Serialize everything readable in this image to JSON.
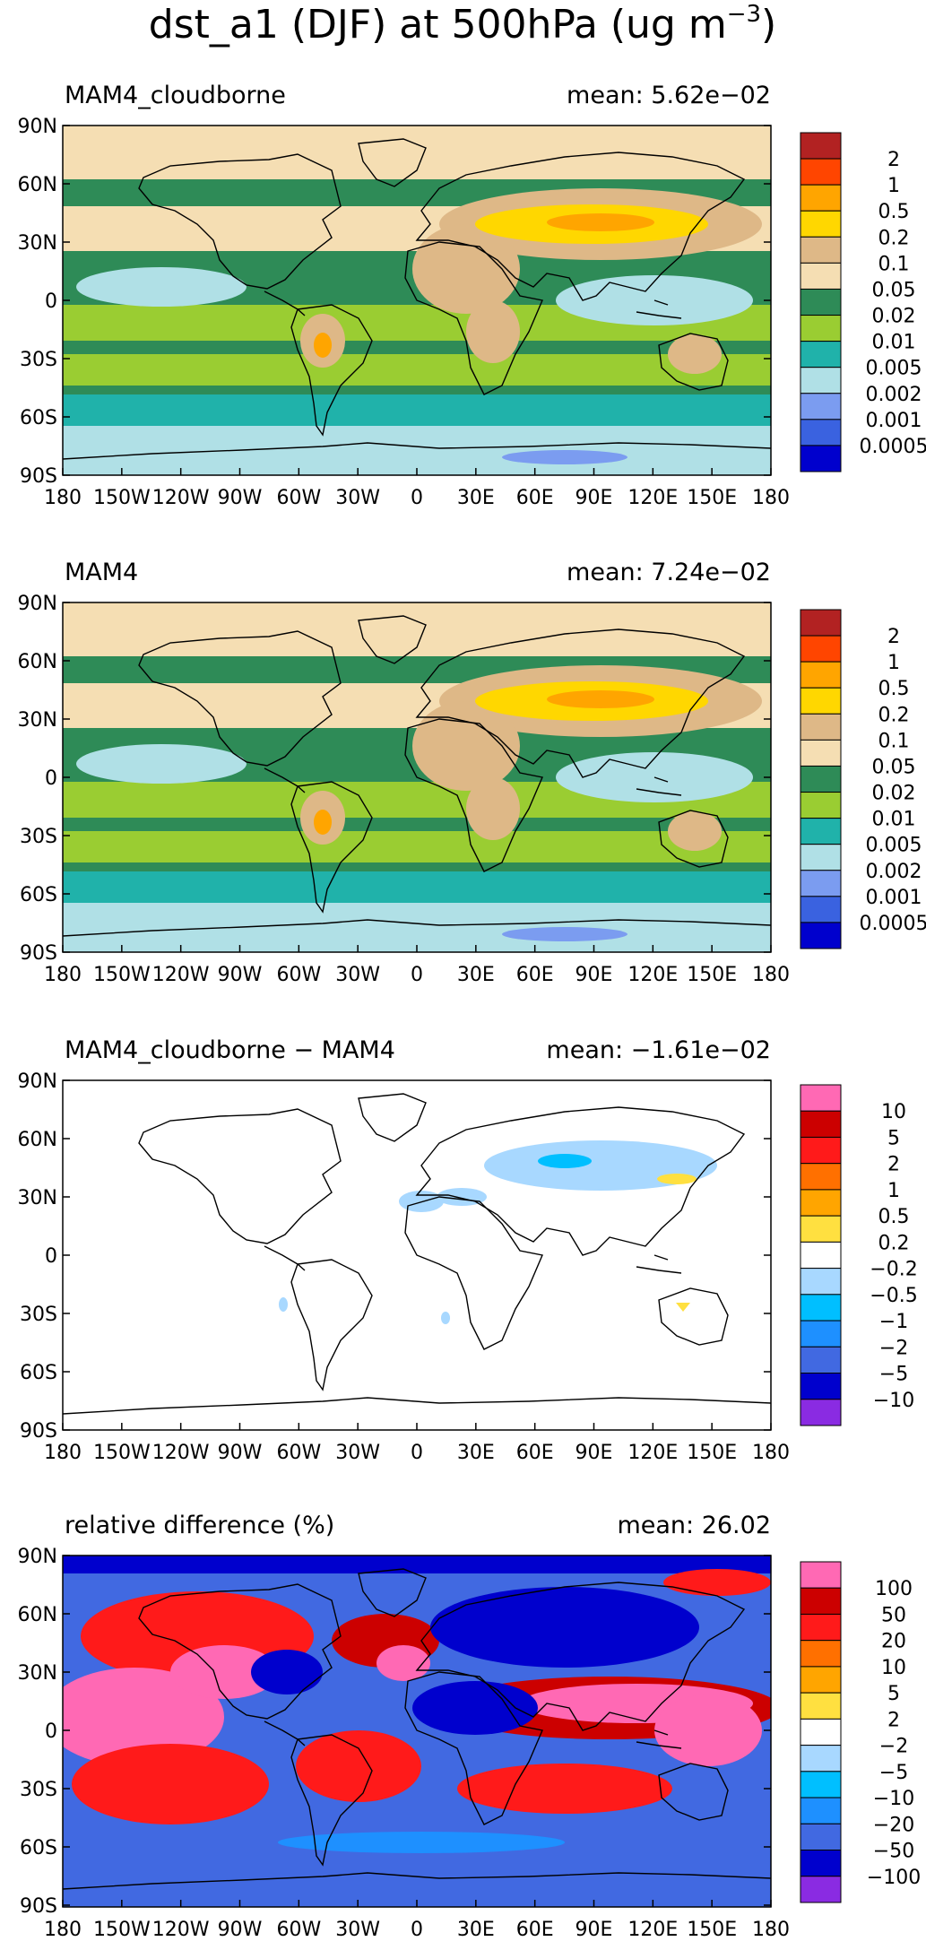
{
  "title": "dst_a1 (DJF) at 500hPa (ug m",
  "title_sup": "−3",
  "title_close": ")",
  "lat_labels": [
    "90N",
    "60N",
    "30N",
    "0",
    "30S",
    "60S",
    "90S"
  ],
  "lon_labels": [
    "180",
    "150W",
    "120W",
    "90W",
    "60W",
    "30W",
    "0",
    "30E",
    "60E",
    "90E",
    "120E",
    "150E",
    "180"
  ],
  "panels": [
    {
      "name": "MAM4_cloudborne",
      "mean": "mean: 5.62e−02",
      "colors": [
        "#b22222",
        "#ff4500",
        "#ffa500",
        "#ffd700",
        "#deb887",
        "#f5deb3",
        "#2e8b57",
        "#9acd32",
        "#20b2aa",
        "#b0e0e6",
        "#7b9cf0",
        "#3a62e0",
        "#0000cd"
      ],
      "levels": [
        "2",
        "1",
        "0.5",
        "0.2",
        "0.1",
        "0.05",
        "0.02",
        "0.01",
        "0.005",
        "0.002",
        "0.001",
        "0.0005"
      ]
    },
    {
      "name": "MAM4",
      "mean": "mean: 7.24e−02",
      "colors": [
        "#b22222",
        "#ff4500",
        "#ffa500",
        "#ffd700",
        "#deb887",
        "#f5deb3",
        "#2e8b57",
        "#9acd32",
        "#20b2aa",
        "#b0e0e6",
        "#7b9cf0",
        "#3a62e0",
        "#0000cd"
      ],
      "levels": [
        "2",
        "1",
        "0.5",
        "0.2",
        "0.1",
        "0.05",
        "0.02",
        "0.01",
        "0.005",
        "0.002",
        "0.001",
        "0.0005"
      ]
    },
    {
      "name": "MAM4_cloudborne − MAM4",
      "mean": "mean: −1.61e−02",
      "colors": [
        "#ff69b4",
        "#cc0000",
        "#ff1a1a",
        "#ff7000",
        "#ffa500",
        "#ffe040",
        "#ffffff",
        "#a8d8ff",
        "#00bfff",
        "#1e90ff",
        "#4169e1",
        "#0000cd",
        "#8a2be2"
      ],
      "levels": [
        "10",
        "5",
        "2",
        "1",
        "0.5",
        "0.2",
        "−0.2",
        "−0.5",
        "−1",
        "−2",
        "−5",
        "−10"
      ]
    },
    {
      "name": "relative difference (%)",
      "mean": "mean: 26.02",
      "colors": [
        "#ff69b4",
        "#cc0000",
        "#ff1a1a",
        "#ff7000",
        "#ffa500",
        "#ffe040",
        "#ffffff",
        "#a8d8ff",
        "#00bfff",
        "#1e90ff",
        "#4169e1",
        "#0000cd",
        "#8a2be2"
      ],
      "levels": [
        "100",
        "50",
        "20",
        "10",
        "5",
        "2",
        "−2",
        "−5",
        "−10",
        "−20",
        "−50",
        "−100"
      ]
    }
  ]
}
